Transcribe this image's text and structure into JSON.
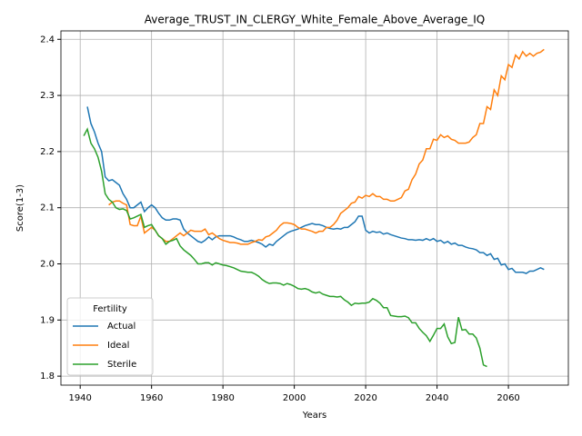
{
  "chart_data": {
    "type": "line",
    "title": "Average_TRUST_IN_CLERGY_White_Female_Above_Average_IQ",
    "x_label": "Years",
    "y_label": "Score(1-3)",
    "xlim": [
      1934.6,
      2076.8
    ],
    "ylim": [
      1.784,
      2.415
    ],
    "xticks": [
      1940,
      1960,
      1980,
      2000,
      2020,
      2040,
      2060
    ],
    "yticks": [
      1.8,
      1.9,
      {
        "value": 2,
        "label": "2.0"
      },
      2.1,
      2.2,
      2.3,
      2.4
    ],
    "grid": true,
    "legend_title": "Fertility",
    "legend_position": "lower left",
    "series": [
      {
        "name": "Actual",
        "color": "#1f77b4",
        "x": [
          1942,
          1943,
          1944,
          1945,
          1946,
          1947,
          1948,
          1949,
          1950,
          1951,
          1952,
          1953,
          1954,
          1955,
          1956,
          1957,
          1958,
          1959,
          1960,
          1961,
          1962,
          1963,
          1964,
          1965,
          1966,
          1967,
          1968,
          1969,
          1970,
          1971,
          1972,
          1973,
          1974,
          1975,
          1976,
          1977,
          1978,
          1979,
          1980,
          1981,
          1982,
          1983,
          1984,
          1985,
          1986,
          1987,
          1988,
          1989,
          1990,
          1991,
          1992,
          1993,
          1994,
          1995,
          1996,
          1997,
          1998,
          1999,
          2000,
          2001,
          2002,
          2003,
          2004,
          2005,
          2006,
          2007,
          2008,
          2009,
          2010,
          2011,
          2012,
          2013,
          2014,
          2015,
          2016,
          2017,
          2018,
          2019,
          2020,
          2021,
          2022,
          2023,
          2024,
          2025,
          2026,
          2027,
          2028,
          2029,
          2030,
          2031,
          2032,
          2033,
          2034,
          2035,
          2036,
          2037,
          2038,
          2039,
          2040,
          2041,
          2042,
          2043,
          2044,
          2045,
          2046,
          2047,
          2048,
          2049,
          2050,
          2051,
          2052,
          2053,
          2054,
          2055,
          2056,
          2057,
          2058,
          2059,
          2060,
          2061,
          2062,
          2063,
          2064,
          2065,
          2066,
          2067,
          2068,
          2069,
          2070
        ],
        "values": [
          2.28,
          2.25,
          2.235,
          2.215,
          2.2,
          2.155,
          2.148,
          2.15,
          2.145,
          2.14,
          2.125,
          2.115,
          2.1,
          2.1,
          2.105,
          2.11,
          2.093,
          2.1,
          2.105,
          2.1,
          2.09,
          2.082,
          2.078,
          2.078,
          2.08,
          2.08,
          2.078,
          2.062,
          2.055,
          2.05,
          2.045,
          2.04,
          2.038,
          2.042,
          2.048,
          2.043,
          2.048,
          2.05,
          2.05,
          2.05,
          2.05,
          2.048,
          2.045,
          2.043,
          2.04,
          2.04,
          2.042,
          2.04,
          2.038,
          2.035,
          2.03,
          2.035,
          2.033,
          2.04,
          2.045,
          2.05,
          2.055,
          2.058,
          2.06,
          2.062,
          2.065,
          2.068,
          2.07,
          2.072,
          2.07,
          2.07,
          2.068,
          2.065,
          2.063,
          2.062,
          2.063,
          2.062,
          2.065,
          2.065,
          2.07,
          2.075,
          2.085,
          2.085,
          2.06,
          2.055,
          2.058,
          2.056,
          2.057,
          2.053,
          2.055,
          2.052,
          2.05,
          2.048,
          2.046,
          2.045,
          2.043,
          2.043,
          2.042,
          2.043,
          2.042,
          2.045,
          2.042,
          2.045,
          2.04,
          2.042,
          2.037,
          2.04,
          2.035,
          2.037,
          2.033,
          2.033,
          2.03,
          2.028,
          2.027,
          2.025,
          2.02,
          2.02,
          2.015,
          2.018,
          2.008,
          2.01,
          1.998,
          2.0,
          1.99,
          1.992,
          1.985,
          1.985,
          1.985,
          1.983,
          1.987,
          1.987,
          1.99,
          1.993,
          1.99
        ]
      },
      {
        "name": "Ideal",
        "color": "#ff7f0e",
        "x": [
          1948,
          1949,
          1950,
          1951,
          1952,
          1953,
          1954,
          1955,
          1956,
          1957,
          1958,
          1959,
          1960,
          1961,
          1962,
          1963,
          1964,
          1965,
          1966,
          1967,
          1968,
          1969,
          1970,
          1971,
          1972,
          1973,
          1974,
          1975,
          1976,
          1977,
          1978,
          1979,
          1980,
          1981,
          1982,
          1983,
          1984,
          1985,
          1986,
          1987,
          1988,
          1989,
          1990,
          1991,
          1992,
          1993,
          1994,
          1995,
          1996,
          1997,
          1998,
          1999,
          2000,
          2001,
          2002,
          2003,
          2004,
          2005,
          2006,
          2007,
          2008,
          2009,
          2010,
          2011,
          2012,
          2013,
          2014,
          2015,
          2016,
          2017,
          2018,
          2019,
          2020,
          2021,
          2022,
          2023,
          2024,
          2025,
          2026,
          2027,
          2028,
          2029,
          2030,
          2031,
          2032,
          2033,
          2034,
          2035,
          2036,
          2037,
          2038,
          2039,
          2040,
          2041,
          2042,
          2043,
          2044,
          2045,
          2046,
          2047,
          2048,
          2049,
          2050,
          2051,
          2052,
          2053,
          2054,
          2055,
          2056,
          2057,
          2058,
          2059,
          2060,
          2061,
          2062,
          2063,
          2064,
          2065,
          2066,
          2067,
          2068,
          2069,
          2070
        ],
        "values": [
          2.105,
          2.11,
          2.112,
          2.112,
          2.108,
          2.105,
          2.07,
          2.068,
          2.068,
          2.085,
          2.055,
          2.06,
          2.065,
          2.06,
          2.05,
          2.045,
          2.04,
          2.04,
          2.045,
          2.05,
          2.055,
          2.05,
          2.055,
          2.06,
          2.058,
          2.058,
          2.058,
          2.062,
          2.052,
          2.055,
          2.05,
          2.045,
          2.042,
          2.04,
          2.038,
          2.038,
          2.037,
          2.035,
          2.035,
          2.035,
          2.038,
          2.04,
          2.043,
          2.042,
          2.048,
          2.05,
          2.055,
          2.06,
          2.068,
          2.073,
          2.073,
          2.072,
          2.07,
          2.065,
          2.062,
          2.062,
          2.06,
          2.058,
          2.055,
          2.058,
          2.058,
          2.065,
          2.065,
          2.07,
          2.078,
          2.09,
          2.095,
          2.1,
          2.108,
          2.11,
          2.12,
          2.117,
          2.122,
          2.12,
          2.125,
          2.12,
          2.12,
          2.115,
          2.115,
          2.112,
          2.112,
          2.115,
          2.118,
          2.13,
          2.133,
          2.15,
          2.16,
          2.178,
          2.185,
          2.205,
          2.205,
          2.222,
          2.22,
          2.23,
          2.225,
          2.228,
          2.222,
          2.22,
          2.215,
          2.215,
          2.215,
          2.217,
          2.225,
          2.23,
          2.25,
          2.25,
          2.28,
          2.275,
          2.31,
          2.3,
          2.335,
          2.328,
          2.355,
          2.35,
          2.372,
          2.365,
          2.378,
          2.37,
          2.375,
          2.37,
          2.375,
          2.377,
          2.382
        ]
      },
      {
        "name": "Sterile",
        "color": "#2ca02c",
        "x": [
          1941,
          1942,
          1943,
          1944,
          1945,
          1946,
          1947,
          1948,
          1949,
          1950,
          1951,
          1952,
          1953,
          1954,
          1955,
          1956,
          1957,
          1958,
          1959,
          1960,
          1961,
          1962,
          1963,
          1964,
          1965,
          1966,
          1967,
          1968,
          1969,
          1970,
          1971,
          1972,
          1973,
          1974,
          1975,
          1976,
          1977,
          1978,
          1979,
          1980,
          1981,
          1982,
          1983,
          1984,
          1985,
          1986,
          1987,
          1988,
          1989,
          1990,
          1991,
          1992,
          1993,
          1994,
          1995,
          1996,
          1997,
          1998,
          1999,
          2000,
          2001,
          2002,
          2003,
          2004,
          2005,
          2006,
          2007,
          2008,
          2009,
          2010,
          2011,
          2012,
          2013,
          2014,
          2015,
          2016,
          2017,
          2018,
          2019,
          2020,
          2021,
          2022,
          2023,
          2024,
          2025,
          2026,
          2027,
          2028,
          2029,
          2030,
          2031,
          2032,
          2033,
          2034,
          2035,
          2036,
          2037,
          2038,
          2039,
          2040,
          2041,
          2042,
          2043,
          2044,
          2045,
          2046,
          2047,
          2048,
          2049,
          2050,
          2051,
          2052,
          2053,
          2054
        ],
        "values": [
          2.228,
          2.24,
          2.215,
          2.205,
          2.19,
          2.165,
          2.125,
          2.115,
          2.11,
          2.1,
          2.097,
          2.098,
          2.095,
          2.08,
          2.082,
          2.085,
          2.088,
          2.065,
          2.068,
          2.07,
          2.06,
          2.05,
          2.045,
          2.035,
          2.04,
          2.042,
          2.045,
          2.032,
          2.025,
          2.02,
          2.015,
          2.008,
          2.0,
          2.0,
          2.002,
          2.002,
          1.998,
          2.002,
          2.0,
          1.998,
          1.997,
          1.995,
          1.993,
          1.99,
          1.987,
          1.986,
          1.985,
          1.985,
          1.982,
          1.978,
          1.972,
          1.968,
          1.965,
          1.966,
          1.966,
          1.965,
          1.962,
          1.965,
          1.963,
          1.96,
          1.956,
          1.955,
          1.956,
          1.954,
          1.95,
          1.948,
          1.95,
          1.946,
          1.944,
          1.942,
          1.942,
          1.941,
          1.942,
          1.936,
          1.932,
          1.926,
          1.93,
          1.929,
          1.93,
          1.93,
          1.932,
          1.938,
          1.935,
          1.93,
          1.922,
          1.922,
          1.908,
          1.907,
          1.906,
          1.906,
          1.907,
          1.904,
          1.895,
          1.895,
          1.885,
          1.878,
          1.872,
          1.862,
          1.873,
          1.885,
          1.885,
          1.893,
          1.87,
          1.858,
          1.86,
          1.905,
          1.882,
          1.883,
          1.875,
          1.875,
          1.868,
          1.85,
          1.82,
          1.817
        ]
      }
    ]
  }
}
